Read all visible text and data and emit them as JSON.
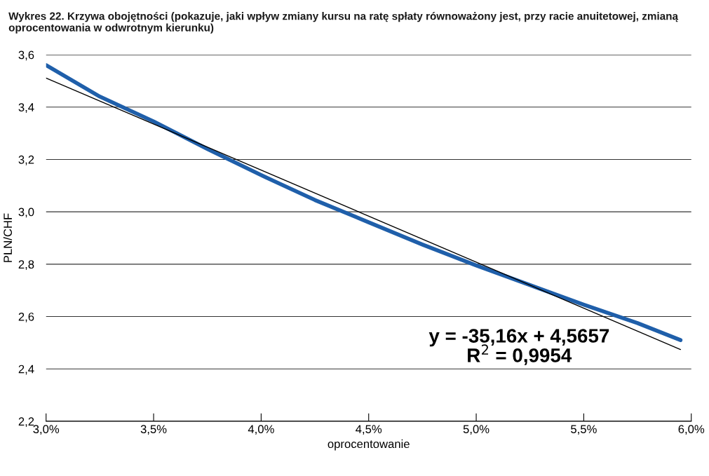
{
  "chart_data": {
    "type": "line",
    "title": "Wykres 22. Krzywa obojętności (pokazuje, jaki wpływ zmiany kursu na ratę spłaty równoważony jest, przy racie anuitetowej, zmianą oprocentowania w odwrotnym kierunku)",
    "xlabel": "oprocentowanie",
    "ylabel": "PLN/CHF",
    "series": [
      {
        "color": "#1f5faa",
        "x": [
          3.0,
          3.25,
          3.5,
          3.75,
          4.0,
          4.25,
          4.5,
          4.75,
          5.0,
          5.25,
          5.5,
          5.75,
          5.95
        ],
        "values": [
          3.56,
          3.44,
          3.345,
          3.24,
          3.14,
          3.045,
          2.96,
          2.875,
          2.795,
          2.72,
          2.645,
          2.575,
          2.51
        ]
      },
      {
        "color": "#000000",
        "x": [
          3.0,
          5.95
        ],
        "values": [
          3.511,
          2.474
        ]
      }
    ],
    "xlim": [
      3.0,
      6.0
    ],
    "ylim": [
      2.2,
      3.6
    ],
    "xticks": [
      {
        "value": 3.0,
        "label": "3,0%"
      },
      {
        "value": 3.5,
        "label": "3,5%"
      },
      {
        "value": 4.0,
        "label": "4,0%"
      },
      {
        "value": 4.5,
        "label": "4,5%"
      },
      {
        "value": 5.0,
        "label": "5,0%"
      },
      {
        "value": 5.5,
        "label": "5,5%"
      },
      {
        "value": 6.0,
        "label": "6,0%"
      }
    ],
    "yticks": [
      {
        "value": 2.2,
        "label": "2,2"
      },
      {
        "value": 2.4,
        "label": "2,4"
      },
      {
        "value": 2.6,
        "label": "2,6"
      },
      {
        "value": 2.8,
        "label": "2,8"
      },
      {
        "value": 3.0,
        "label": "3,0"
      },
      {
        "value": 3.2,
        "label": "3,2"
      },
      {
        "value": 3.4,
        "label": "3,4"
      },
      {
        "value": 3.6,
        "label": "3,6"
      }
    ],
    "annotations": [
      "y = -35,16x + 4,5657",
      "R$^{2}$ = 0,9954"
    ],
    "grid": "y",
    "legend": false,
    "marker": "none",
    "line_style": "solid"
  }
}
